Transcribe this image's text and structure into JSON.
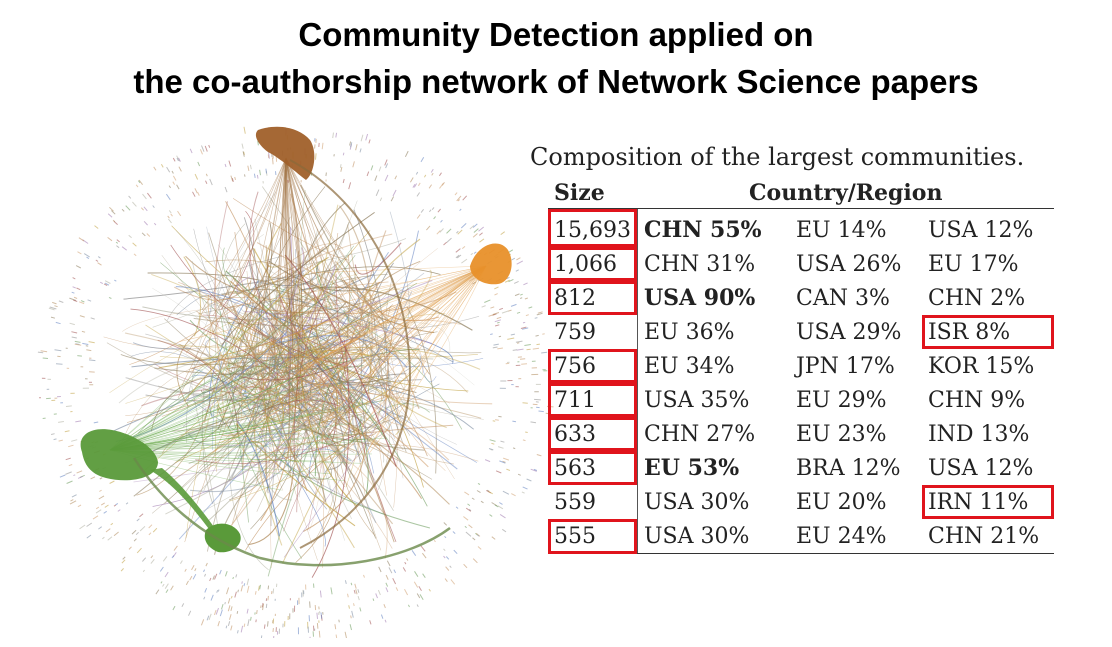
{
  "title": {
    "line1": "Community Detection applied on",
    "line2": "the co-authorship network of Network Science papers"
  },
  "table": {
    "caption": "Composition of the largest communities.",
    "headers": {
      "size": "Size",
      "country": "Country/Region"
    },
    "rows": [
      {
        "size": "15,693",
        "c1": "CHN 55%",
        "c2": "EU 14%",
        "c3": "USA 12%",
        "bold": 1,
        "highlight": 0
      },
      {
        "size": "1,066",
        "c1": "CHN 31%",
        "c2": "USA 26%",
        "c3": "EU 17%",
        "bold": 0,
        "highlight": 0
      },
      {
        "size": "812",
        "c1": "USA 90%",
        "c2": "CAN 3%",
        "c3": "CHN 2%",
        "bold": 1,
        "highlight": 0
      },
      {
        "size": "759",
        "c1": "EU 36%",
        "c2": "USA 29%",
        "c3": "ISR 8%",
        "bold": 0,
        "highlight": 3
      },
      {
        "size": "756",
        "c1": "EU 34%",
        "c2": "JPN 17%",
        "c3": "KOR 15%",
        "bold": 0,
        "highlight": 0
      },
      {
        "size": "711",
        "c1": "USA 35%",
        "c2": "EU 29%",
        "c3": "CHN 9%",
        "bold": 0,
        "highlight": 0
      },
      {
        "size": "633",
        "c1": "CHN 27%",
        "c2": "EU 23%",
        "c3": "IND 13%",
        "bold": 0,
        "highlight": 0
      },
      {
        "size": "563",
        "c1": "EU 53%",
        "c2": "BRA 12%",
        "c3": "USA 12%",
        "bold": 1,
        "highlight": 0
      },
      {
        "size": "559",
        "c1": "USA 30%",
        "c2": "EU 20%",
        "c3": "IRN 11%",
        "bold": 0,
        "highlight": 3
      },
      {
        "size": "555",
        "c1": "USA 30%",
        "c2": "EU 24%",
        "c3": "CHN 21%",
        "bold": 0,
        "highlight": 0
      }
    ]
  },
  "colors": {
    "highlight": "#e0141c",
    "community_brown": "#a0602a",
    "community_orange": "#e8902a",
    "community_green": "#5a9a3a"
  }
}
